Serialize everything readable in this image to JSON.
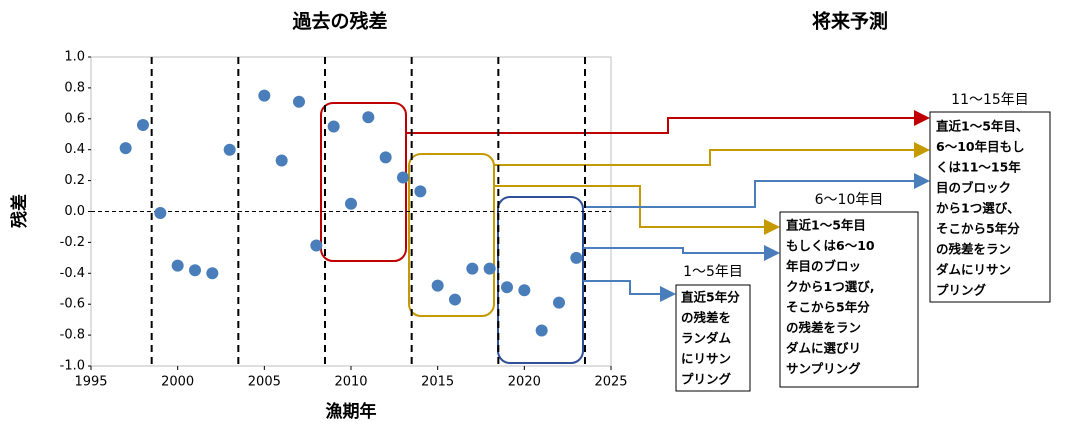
{
  "chart_data": {
    "type": "scatter",
    "title": "過去の残差",
    "subtitle": "将来予測",
    "x_label": "漁期年",
    "y_label": "残差",
    "color": "#4a7ebb",
    "x": [
      1997,
      1998,
      1999,
      2000,
      2001,
      2002,
      2003,
      2005,
      2006,
      2007,
      2008,
      2009,
      2010,
      2011,
      2012,
      2013,
      2014,
      2015,
      2016,
      2017,
      2018,
      2019,
      2020,
      2021,
      2022,
      2023
    ],
    "values": [
      0.41,
      0.56,
      -0.01,
      -0.35,
      -0.38,
      -0.4,
      0.4,
      0.75,
      0.33,
      0.71,
      -0.22,
      0.55,
      0.05,
      0.61,
      0.35,
      0.22,
      0.13,
      -0.48,
      -0.57,
      -0.37,
      -0.37,
      -0.49,
      -0.51,
      -0.77,
      -0.59,
      -0.3
    ],
    "xlim": [
      1995,
      2025
    ],
    "ylim": [
      -1.0,
      1.0
    ],
    "xticks": [
      1995,
      2000,
      2005,
      2010,
      2015,
      2020,
      2025
    ],
    "yticks": [
      {
        "value": 1.0,
        "label": "1.0"
      },
      0.8,
      0.6,
      0.4,
      0.2,
      {
        "value": 0.0,
        "label": "0.0"
      },
      -0.2,
      -0.4,
      -0.6,
      -0.8,
      {
        "value": -1.0,
        "label": "-1.0"
      }
    ],
    "dividers": [
      1998.5,
      2003.5,
      2008.5,
      2013.5,
      2018.5,
      2023.5
    ],
    "annotations": [
      {
        "title": "11～15年目",
        "lines": [
          "直近1～5年目、",
          "6～10年目もし",
          "くは11～15年",
          "目のブロック",
          "から1つ選び、",
          "そこから5年分",
          "の残差をラン",
          "ダムにリサン",
          "プリング"
        ]
      },
      {
        "title": "6～10年目",
        "lines": [
          "直近1～5年目",
          "もしくは6～10",
          "年目のブロッ",
          "クから1つ選び,",
          "そこから5年分",
          "の残差をラン",
          "ダムに選びリ",
          "サンプリング"
        ]
      },
      {
        "title": "1～5年目",
        "lines": [
          "直近5年分",
          "の残差を",
          "ランダム",
          "にリサン",
          "プリング"
        ]
      }
    ]
  }
}
